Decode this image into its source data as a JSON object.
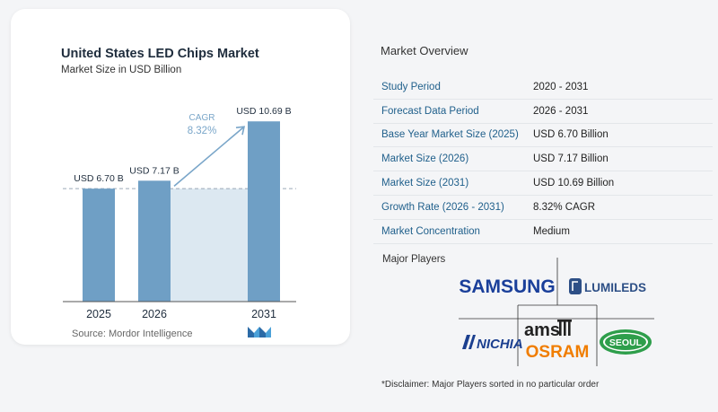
{
  "chart_data": {
    "type": "bar",
    "title": "United States LED Chips Market",
    "subtitle": "Market Size in USD Billion",
    "categories": [
      "2025",
      "2026",
      "2031"
    ],
    "values": [
      6.7,
      7.17,
      10.69
    ],
    "value_labels": [
      "USD 6.70 B",
      "USD 7.17 B",
      "USD 10.69 B"
    ],
    "cagr_label": "CAGR",
    "cagr_value": "8.32%",
    "ylim": [
      0,
      11.5
    ],
    "colors": {
      "bar": "#6f9fc5",
      "fill": "#dce8f1",
      "arrow": "#7aa6c9",
      "dash": "#9aa9b6",
      "cagr": "#7aa6c9"
    }
  },
  "source": "Source: Mordor Intelligence",
  "overview": {
    "title": "Market Overview",
    "rows": [
      {
        "key": "Study Period",
        "value": "2020 - 2031"
      },
      {
        "key": "Forecast Data Period",
        "value": "2026 - 2031"
      },
      {
        "key": "Base Year Market Size (2025)",
        "value": "USD 6.70 Billion"
      },
      {
        "key": "Market Size (2026)",
        "value": "USD 7.17 Billion"
      },
      {
        "key": "Market Size (2031)",
        "value": "USD 10.69 Billion"
      },
      {
        "key": "Growth Rate (2026 - 2031)",
        "value": "8.32% CAGR"
      },
      {
        "key": "Market Concentration",
        "value": "Medium"
      }
    ]
  },
  "players": {
    "title": "Major Players",
    "logos": [
      "SAMSUNG",
      "LUMILEDS",
      "ams",
      "OSRAM",
      "NICHIA",
      "SEOUL"
    ],
    "colors": {
      "samsung": "#1a3f9a",
      "lumileds": "#2d4f86",
      "ams": "#222222",
      "osram": "#f07d00",
      "nichia": "#1b3f8f",
      "seoul": "#2e9e4b"
    }
  },
  "disclaimer": "*Disclaimer: Major Players sorted in no particular order"
}
